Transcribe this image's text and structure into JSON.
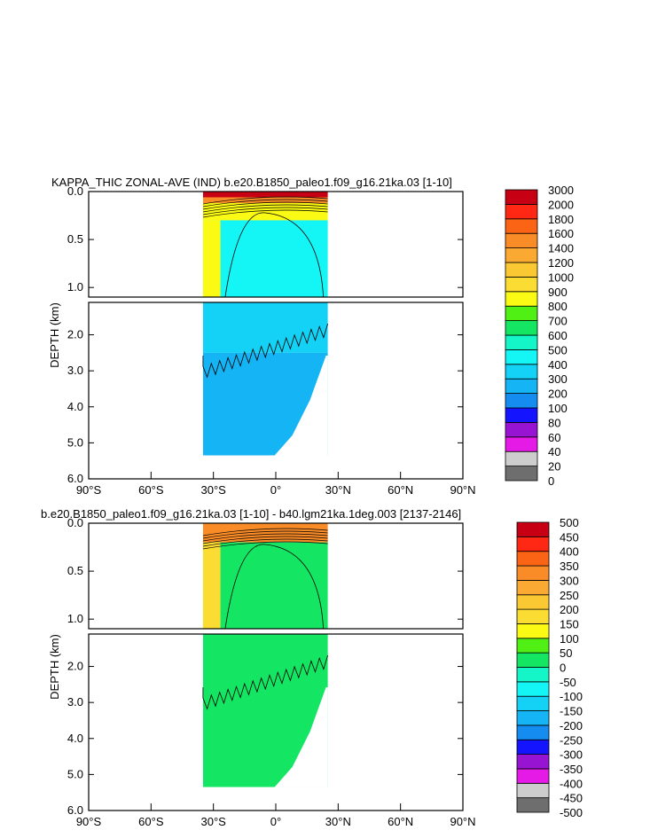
{
  "palettes": {
    "kappa": [
      "#6e6e6e",
      "#cdcdcd",
      "#e61ae6",
      "#9614d2",
      "#1414ff",
      "#148cf0",
      "#14b4f5",
      "#14d2f5",
      "#14f5f5",
      "#14f5c8",
      "#14e664",
      "#50f014",
      "#fafa14",
      "#fadc32",
      "#fac832",
      "#faaa32",
      "#fa8c28",
      "#fa6414",
      "#ff2814",
      "#c80014"
    ],
    "diff": [
      "#6e6e6e",
      "#cdcdcd",
      "#e61ae6",
      "#9614d2",
      "#1414ff",
      "#148cf0",
      "#14b4f5",
      "#14d2f5",
      "#14f5f5",
      "#14f5c8",
      "#14e664",
      "#50f014",
      "#fafa14",
      "#fadc32",
      "#fac832",
      "#faaa32",
      "#fa8c28",
      "#fa6414",
      "#ff2814",
      "#c80014"
    ]
  },
  "chart_data": [
    {
      "type": "heatmap",
      "title": "KAPPA_THIC ZONAL-AVE (IND) b.e20.B1850_paleo1.f09_g16.21ka.03 [1-10]",
      "ylabel": "DEPTH (km)",
      "xlim": [
        -90,
        90
      ],
      "ylim_top": [
        0.0,
        1.1
      ],
      "ylim_bottom": [
        1.1,
        6.0
      ],
      "x_ticks": [
        "90°S",
        "60°S",
        "30°S",
        "0°",
        "30°N",
        "60°N",
        "90°N"
      ],
      "x_tick_values": [
        -90,
        -60,
        -30,
        0,
        30,
        60,
        90
      ],
      "y_ticks_top": [
        "0.0",
        "0.5",
        "1.0"
      ],
      "y_tick_values_top": [
        0.0,
        0.5,
        1.0
      ],
      "y_ticks_bottom": [
        "2.0",
        "3.0",
        "4.0",
        "5.0",
        "6.0"
      ],
      "y_tick_values_bottom": [
        2.0,
        3.0,
        4.0,
        5.0,
        6.0
      ],
      "data_extent_lat": [
        -35,
        25
      ],
      "max_depth_km": 5.35,
      "legend_labels": [
        "0",
        "20",
        "40",
        "60",
        "80",
        "100",
        "200",
        "300",
        "400",
        "500",
        "600",
        "700",
        "800",
        "900",
        "1000",
        "1200",
        "1400",
        "1600",
        "1800",
        "2000",
        "3000"
      ],
      "field": [
        {
          "depth": [
            0.0,
            0.06
          ],
          "value": 3000
        },
        {
          "depth": [
            0.06,
            0.12
          ],
          "value": 1500
        },
        {
          "depth": [
            0.12,
            0.3
          ],
          "value": 800
        },
        {
          "depth": [
            0.3,
            1.1
          ],
          "value": 400,
          "west_edge": 800
        },
        {
          "depth": [
            1.1,
            2.5
          ],
          "value": 350
        },
        {
          "depth": [
            2.5,
            5.35
          ],
          "value": 250
        }
      ]
    },
    {
      "type": "heatmap",
      "title": "b.e20.B1850_paleo1.f09_g16.21ka.03 [1-10] - b40.lgm21ka.1deg.003 [2137-2146]",
      "ylabel": "DEPTH (km)",
      "xlim": [
        -90,
        90
      ],
      "ylim_top": [
        0.0,
        1.1
      ],
      "ylim_bottom": [
        1.1,
        6.0
      ],
      "x_ticks": [
        "90°S",
        "60°S",
        "30°S",
        "0°",
        "30°N",
        "60°N",
        "90°N"
      ],
      "x_tick_values": [
        -90,
        -60,
        -30,
        0,
        30,
        60,
        90
      ],
      "y_ticks_top": [
        "0.0",
        "0.5",
        "1.0"
      ],
      "y_tick_values_top": [
        0.0,
        0.5,
        1.0
      ],
      "y_ticks_bottom": [
        "2.0",
        "3.0",
        "4.0",
        "5.0",
        "6.0"
      ],
      "y_tick_values_bottom": [
        2.0,
        3.0,
        4.0,
        5.0,
        6.0
      ],
      "data_extent_lat": [
        -35,
        25
      ],
      "max_depth_km": 5.35,
      "legend_labels": [
        "-500",
        "-450",
        "-400",
        "-350",
        "-300",
        "-250",
        "-200",
        "-150",
        "-100",
        "-50",
        "0",
        "50",
        "100",
        "150",
        "200",
        "250",
        "300",
        "350",
        "400",
        "450",
        "500"
      ],
      "field": [
        {
          "depth": [
            0.0,
            0.2
          ],
          "value": 300
        },
        {
          "depth": [
            0.2,
            1.1
          ],
          "value": 0,
          "west_edge": 150
        },
        {
          "depth": [
            1.1,
            5.35
          ],
          "value": 0
        }
      ]
    }
  ]
}
